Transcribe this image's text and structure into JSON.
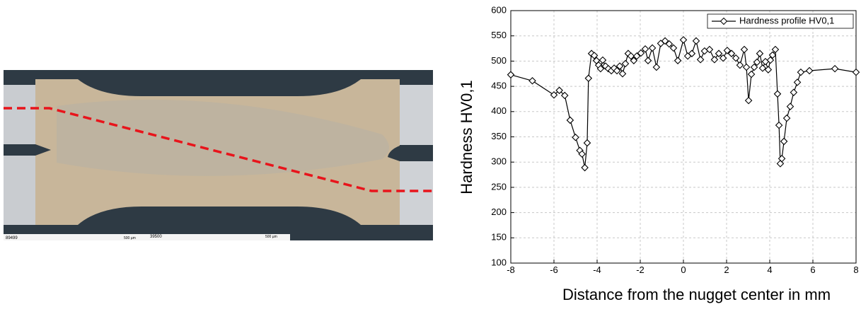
{
  "micrograph": {
    "labels": [
      "89499",
      "500 µm",
      "39500",
      "500 µm"
    ]
  },
  "chart_data": {
    "type": "line",
    "xlabel": "Distance from the nugget center in mm",
    "ylabel": "Hardness HV0,1",
    "xlim": [
      -8,
      8
    ],
    "xticks": [
      -8,
      -6,
      -4,
      -2,
      0,
      2,
      4,
      6,
      8
    ],
    "ylim": [
      100,
      600
    ],
    "yticks": [
      100,
      150,
      200,
      250,
      300,
      350,
      400,
      450,
      500,
      550,
      600
    ],
    "grid": true,
    "legend": "upper right",
    "series": [
      {
        "name": "Hardness profile HV0,1",
        "color": "#000000",
        "x": [
          -8,
          -7,
          -6,
          -5.75,
          -5.5,
          -5.25,
          -5,
          -4.8,
          -4.7,
          -4.57,
          -4.46,
          -4.4,
          -4.26,
          -4.13,
          -4.03,
          -3.93,
          -3.84,
          -3.74,
          -3.61,
          -3.48,
          -3.34,
          -3.21,
          -3.08,
          -2.95,
          -2.82,
          -2.69,
          -2.56,
          -2.43,
          -2.3,
          -2.16,
          -1.97,
          -1.77,
          -1.64,
          -1.44,
          -1.25,
          -1.05,
          -0.85,
          -0.66,
          -0.46,
          -0.26,
          0,
          0.2,
          0.39,
          0.59,
          0.79,
          0.98,
          1.21,
          1.44,
          1.64,
          1.84,
          2.03,
          2.23,
          2.43,
          2.62,
          2.82,
          2.92,
          3.02,
          3.15,
          3.28,
          3.41,
          3.54,
          3.67,
          3.8,
          3.93,
          4.03,
          4.13,
          4.26,
          4.36,
          4.43,
          4.49,
          4.56,
          4.66,
          4.79,
          4.95,
          5.11,
          5.28,
          5.44,
          5.84,
          7.02,
          8
        ],
        "values": [
          473,
          461,
          433,
          442,
          432,
          383,
          349,
          323,
          316,
          289,
          338,
          466,
          515,
          511,
          501,
          492,
          485,
          502,
          490,
          485,
          481,
          486,
          481,
          490,
          475,
          495,
          515,
          510,
          501,
          510,
          516,
          524,
          501,
          526,
          488,
          535,
          540,
          534,
          526,
          501,
          542,
          510,
          515,
          540,
          503,
          520,
          523,
          503,
          515,
          506,
          521,
          515,
          506,
          492,
          523,
          488,
          422,
          474,
          488,
          498,
          515,
          486,
          499,
          483,
          502,
          512,
          523,
          435,
          373,
          297,
          307,
          341,
          387,
          410,
          438,
          458,
          478,
          481,
          485,
          478
        ]
      }
    ]
  }
}
